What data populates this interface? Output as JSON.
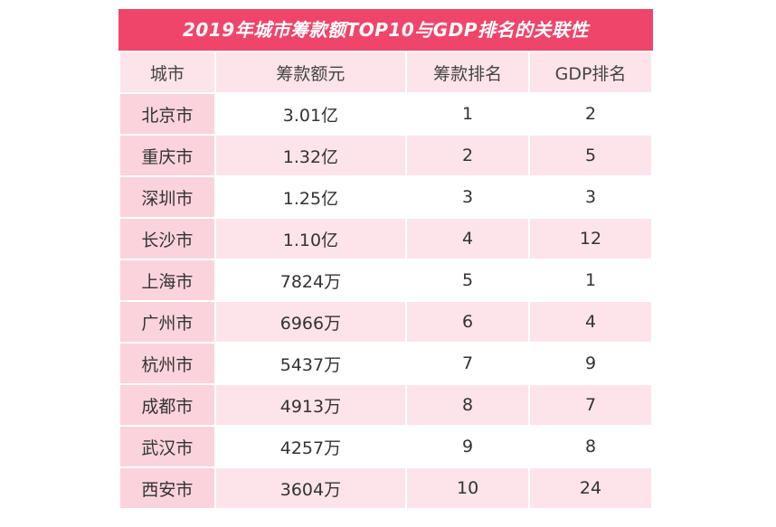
{
  "chart_data": {
    "type": "table",
    "title": "2019年城市筹款额TOP10与GDP排名的关联性",
    "columns": [
      "城市",
      "筹款额元",
      "筹款排名",
      "GDP排名"
    ],
    "rows": [
      [
        "北京市",
        "3.01亿",
        "1",
        "2"
      ],
      [
        "重庆市",
        "1.32亿",
        "2",
        "5"
      ],
      [
        "深圳市",
        "1.25亿",
        "3",
        "3"
      ],
      [
        "长沙市",
        "1.10亿",
        "4",
        "12"
      ],
      [
        "上海市",
        "7824万",
        "5",
        "1"
      ],
      [
        "广州市",
        "6966万",
        "6",
        "4"
      ],
      [
        "杭州市",
        "5437万",
        "7",
        "9"
      ],
      [
        "成都市",
        "4913万",
        "8",
        "7"
      ],
      [
        "武汉市",
        "4257万",
        "9",
        "8"
      ],
      [
        "西安市",
        "3604万",
        "10",
        "24"
      ]
    ]
  },
  "colors": {
    "header": "#f0456a",
    "city_cell": "#fbd3dd",
    "alt_row": "#fde4ea"
  }
}
